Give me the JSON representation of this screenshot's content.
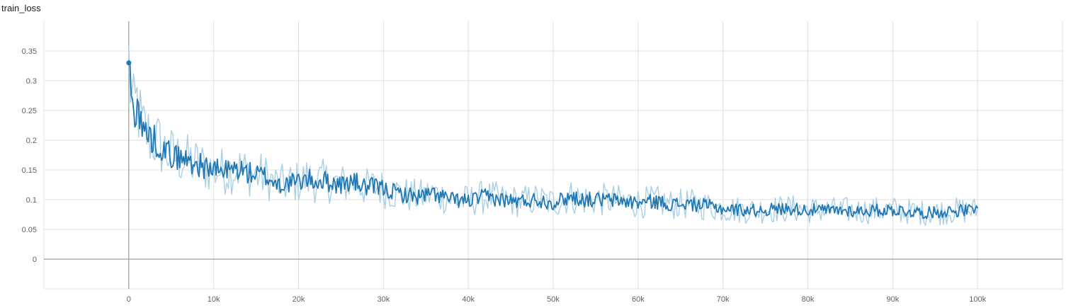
{
  "chart_data": {
    "type": "line",
    "title": "train_loss",
    "xlabel": "",
    "ylabel": "",
    "xlim": [
      -10000,
      110000
    ],
    "ylim": [
      -0.05,
      0.4
    ],
    "x_ticks": [
      0,
      10000,
      20000,
      30000,
      40000,
      50000,
      60000,
      70000,
      80000,
      90000,
      100000
    ],
    "x_tick_labels": [
      "0",
      "10k",
      "20k",
      "30k",
      "40k",
      "50k",
      "60k",
      "70k",
      "80k",
      "90k",
      "100k"
    ],
    "y_ticks": [
      0,
      0.05,
      0.1,
      0.15,
      0.2,
      0.25,
      0.3,
      0.35
    ],
    "y_tick_labels": [
      "0",
      "0.05",
      "0.1",
      "0.15",
      "0.2",
      "0.25",
      "0.3",
      "0.35"
    ],
    "grid": true,
    "legend": "none",
    "colors": {
      "smoothed": "#1f77b4",
      "raw": "#a9cfe6",
      "grid": "#e0e0e0",
      "zero_axis": "#9e9e9e"
    },
    "series": [
      {
        "style": "smoothed",
        "x": [
          0,
          500,
          1000,
          1500,
          2000,
          2500,
          3000,
          3500,
          4000,
          5000,
          6000,
          7000,
          8000,
          9000,
          10000,
          11000,
          12000,
          13000,
          14000,
          15000,
          16000,
          17000,
          18000,
          19000,
          20000,
          21000,
          22000,
          23000,
          24000,
          25000,
          26000,
          27000,
          28000,
          29000,
          30000,
          32000,
          34000,
          36000,
          38000,
          40000,
          42000,
          44000,
          46000,
          48000,
          50000,
          52000,
          54000,
          56000,
          58000,
          60000,
          62000,
          64000,
          66000,
          68000,
          70000,
          72000,
          74000,
          76000,
          78000,
          80000,
          82000,
          84000,
          86000,
          88000,
          90000,
          92000,
          94000,
          96000,
          98000,
          100000
        ],
        "y": [
          0.33,
          0.24,
          0.265,
          0.22,
          0.215,
          0.205,
          0.2,
          0.195,
          0.185,
          0.175,
          0.17,
          0.165,
          0.16,
          0.155,
          0.15,
          0.148,
          0.15,
          0.152,
          0.145,
          0.142,
          0.14,
          0.13,
          0.125,
          0.128,
          0.13,
          0.135,
          0.13,
          0.132,
          0.128,
          0.125,
          0.13,
          0.128,
          0.12,
          0.122,
          0.118,
          0.11,
          0.105,
          0.11,
          0.1,
          0.098,
          0.105,
          0.1,
          0.097,
          0.1,
          0.095,
          0.105,
          0.1,
          0.1,
          0.098,
          0.095,
          0.097,
          0.092,
          0.093,
          0.09,
          0.085,
          0.083,
          0.082,
          0.084,
          0.085,
          0.083,
          0.082,
          0.082,
          0.081,
          0.082,
          0.083,
          0.08,
          0.078,
          0.08,
          0.082,
          0.082
        ]
      }
    ]
  }
}
